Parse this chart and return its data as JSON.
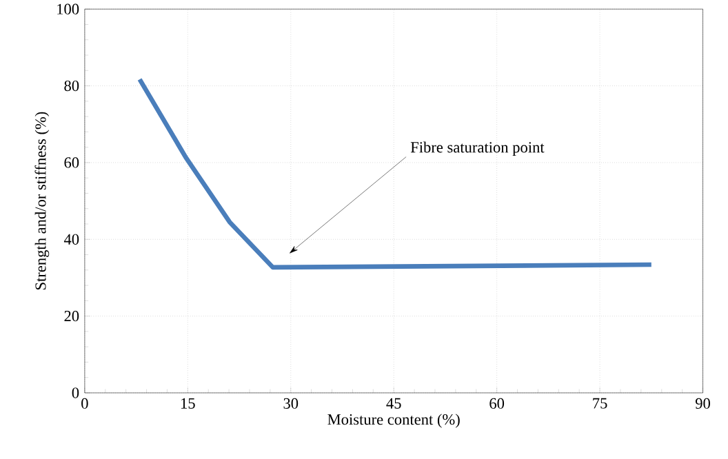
{
  "chart_data": {
    "type": "line",
    "xlabel": "Moisture content (%)",
    "ylabel": "Strength and/or stiffness (%)",
    "x": [
      8.0,
      14.7,
      21.1,
      27.4,
      82.5
    ],
    "values": [
      81.7,
      61.4,
      44.5,
      32.7,
      33.4
    ],
    "color": "#4a7ebb",
    "line_style": "solid",
    "marker": "none",
    "grid": true,
    "xlim": [
      0,
      90
    ],
    "ylim": [
      0,
      100
    ],
    "xticks": [
      0,
      15,
      30,
      45,
      60,
      75,
      90
    ],
    "yticks": [
      0,
      20,
      40,
      60,
      80,
      100
    ],
    "annotations": [
      "Fibre saturation point"
    ]
  }
}
